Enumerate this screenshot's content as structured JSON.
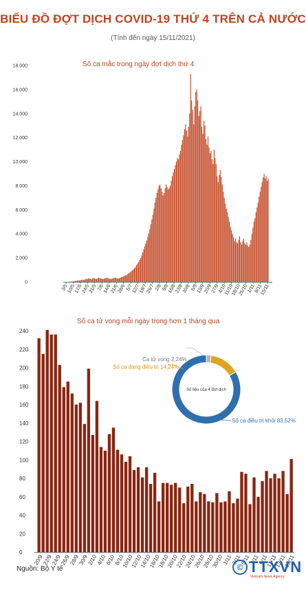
{
  "header": {
    "title": "BIỂU ĐỒ ĐỢT DỊCH COVID-19 THỨ 4 TRÊN CẢ NƯỚC",
    "subtitle": "(Tính đến ngày 15/11/2021)"
  },
  "footer": {
    "source": "Nguồn: Bộ Y tế",
    "logo_text": "TTXVN",
    "logo_sub": "Vietnam News Agency"
  },
  "colors": {
    "accent": "#c1421e",
    "bar": "#c1421e",
    "bar2": "#8b2510",
    "donut_blue": "#2f6fad",
    "donut_yellow": "#e0a423",
    "donut_gray": "#b5b5b5"
  },
  "chart_data": [
    {
      "type": "bar",
      "title": "Số ca mắc trong ngày đợt dịch thứ 4",
      "ylim": [
        0,
        18000
      ],
      "yticks": [
        "0",
        "2.000",
        "4.000",
        "6.000",
        "8.000",
        "10.000",
        "12.000",
        "14.000",
        "16.000",
        "18.000"
      ],
      "xticks": [
        "3/5",
        "10/5",
        "17/5",
        "24/5",
        "31/5",
        "7/6",
        "14/6",
        "21/6",
        "28/6",
        "5/7",
        "12/7",
        "19/7",
        "26/7",
        "2/8",
        "9/8",
        "16/8",
        "23/8",
        "30/8",
        "6/9",
        "13/9",
        "20/9",
        "27/9",
        "4/10",
        "11/10",
        "18/10",
        "25/10",
        "1/11",
        "8/11",
        "15/11"
      ],
      "values": [
        10,
        15,
        20,
        30,
        40,
        60,
        80,
        90,
        100,
        120,
        110,
        140,
        160,
        180,
        150,
        200,
        220,
        260,
        240,
        300,
        280,
        250,
        220,
        300,
        320,
        280,
        260,
        240,
        310,
        350,
        300,
        280,
        260,
        240,
        250,
        300,
        340,
        320,
        300,
        280,
        260,
        250,
        270,
        300,
        320,
        350,
        320,
        300,
        280,
        300,
        360,
        380,
        420,
        460,
        500,
        540,
        560,
        620,
        700,
        760,
        820,
        900,
        980,
        1060,
        1150,
        1250,
        1400,
        1520,
        1650,
        1820,
        2000,
        2200,
        2450,
        2700,
        2950,
        3200,
        3450,
        3750,
        4050,
        4400,
        4800,
        5200,
        5600,
        6100,
        6600,
        7000,
        7400,
        7700,
        8000,
        8100,
        7800,
        7500,
        7200,
        7400,
        7800,
        8100,
        7900,
        7700,
        7800,
        8000,
        8400,
        8800,
        9100,
        9400,
        9700,
        10000,
        10300,
        10200,
        10600,
        10900,
        11400,
        11800,
        12200,
        12700,
        13100,
        12600,
        12100,
        12900,
        14000,
        17300,
        15100,
        14300,
        13100,
        14600,
        15800,
        16000,
        15100,
        13800,
        14200,
        14600,
        12900,
        12300,
        13400,
        13000,
        11900,
        11400,
        12100,
        11200,
        10700,
        10900,
        10200,
        9800,
        11000,
        10300,
        9800,
        8800,
        8300,
        8900,
        9300,
        8700,
        8100,
        7500,
        7000,
        6500,
        6100,
        5800,
        5400,
        5000,
        4600,
        4300,
        4000,
        3700,
        3400,
        3600,
        3300,
        3200,
        3500,
        3800,
        3300,
        3100,
        3400,
        3600,
        3200,
        3100,
        3300,
        3000,
        2900,
        3100,
        3500,
        4000,
        4500,
        5000,
        5300,
        5800,
        6200,
        6600,
        7100,
        7500,
        7900,
        8300,
        8700,
        9000,
        8600,
        8800,
        8400,
        8600
      ]
    },
    {
      "type": "bar",
      "title": "Số ca tử vong mỗi ngày trong hơn 1 tháng qua",
      "ylim": [
        0,
        240
      ],
      "yticks": [
        "0",
        "20",
        "40",
        "60",
        "80",
        "100",
        "120",
        "140",
        "160",
        "180",
        "200",
        "220",
        "240"
      ],
      "xticks": [
        "20/9",
        "22/9",
        "24/9",
        "26/9",
        "28/9",
        "30/9",
        "2/10",
        "4/10",
        "6/10",
        "8/10",
        "10/10",
        "12/10",
        "14/10",
        "16/10",
        "18/10",
        "20/10",
        "22/10",
        "24/10",
        "26/10",
        "28/10",
        "30/10",
        "1/11",
        "3/11",
        "5/11",
        "7/11",
        "9/11",
        "11/11",
        "13/11",
        "15/11"
      ],
      "values": [
        232,
        215,
        241,
        236,
        236,
        203,
        179,
        185,
        172,
        160,
        162,
        139,
        199,
        127,
        164,
        114,
        110,
        128,
        135,
        111,
        106,
        98,
        104,
        89,
        92,
        81,
        92,
        74,
        86,
        55,
        75,
        75,
        73,
        75,
        70,
        53,
        71,
        74,
        55,
        65,
        63,
        55,
        54,
        64,
        54,
        55,
        66,
        53,
        58,
        87,
        85,
        52,
        81,
        60,
        77,
        88,
        80,
        85,
        80,
        88,
        63,
        101
      ]
    },
    {
      "type": "pie",
      "title": "Số liệu của 4 đợt dịch",
      "labels": [
        "Ca tử vong 2,24%",
        "Số ca đang điều trị 14,24%",
        "Số ca điều trị khỏi 83,52%"
      ],
      "values": [
        2.24,
        14.24,
        83.52
      ]
    }
  ]
}
